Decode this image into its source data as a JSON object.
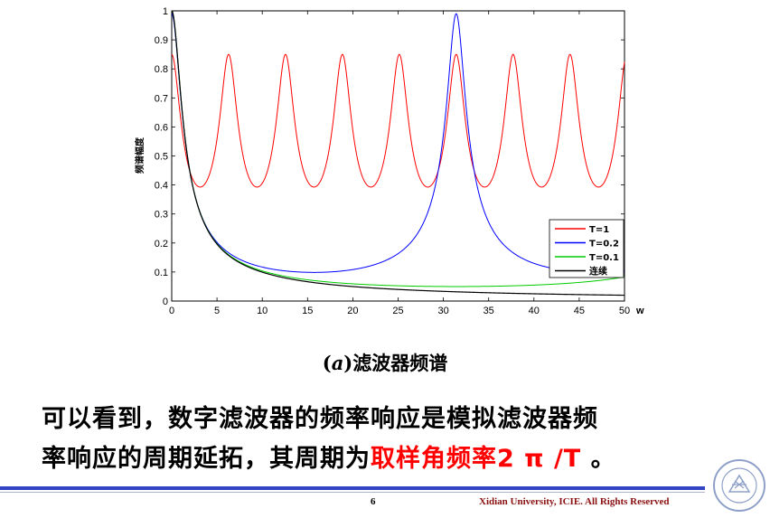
{
  "chart_data": {
    "type": "line",
    "ylabel": "频谱幅度",
    "xlabel": "w",
    "xlim": [
      0,
      50
    ],
    "ylim": [
      0,
      1
    ],
    "x_ticks": [
      0,
      5,
      10,
      15,
      20,
      25,
      30,
      35,
      40,
      45,
      50
    ],
    "y_ticks": [
      0,
      0.1,
      0.2,
      0.3,
      0.4,
      0.5,
      0.6,
      0.7,
      0.8,
      0.9,
      1
    ],
    "grid": false,
    "legend_position": "lower-right",
    "series": [
      {
        "name": "T=1",
        "color": "#ff0000",
        "period": 6.2832,
        "peak": 0.85,
        "trough": 0.3
      },
      {
        "name": "T=0.2",
        "color": "#0000ff",
        "period": 31.416,
        "peak": 0.99,
        "trough": 0.023
      },
      {
        "name": "T=0.1",
        "color": "#00cc00",
        "period": 62.832,
        "peak": 1.0,
        "trough": 0.0125
      },
      {
        "name": "连续",
        "color": "#000000",
        "peak": 1.0
      }
    ]
  },
  "caption": {
    "prefix": "(",
    "italic": "a",
    "suffix": ")滤波器频谱"
  },
  "body": {
    "line1": "可以看到，数字滤波器的频率响应是模拟滤波器频",
    "line2_plain": "率响应的周期延拓，其周期为",
    "line2_highlight": "取样角频率2 π /T",
    "line2_end": " 。"
  },
  "footer": {
    "page_number": "6",
    "copyright": "Xidian University, ICIE. All Rights Reserved"
  },
  "colors": {
    "accent_bar": "#3345c4",
    "highlight": "#ff0000",
    "footer_text": "#8b1010"
  }
}
